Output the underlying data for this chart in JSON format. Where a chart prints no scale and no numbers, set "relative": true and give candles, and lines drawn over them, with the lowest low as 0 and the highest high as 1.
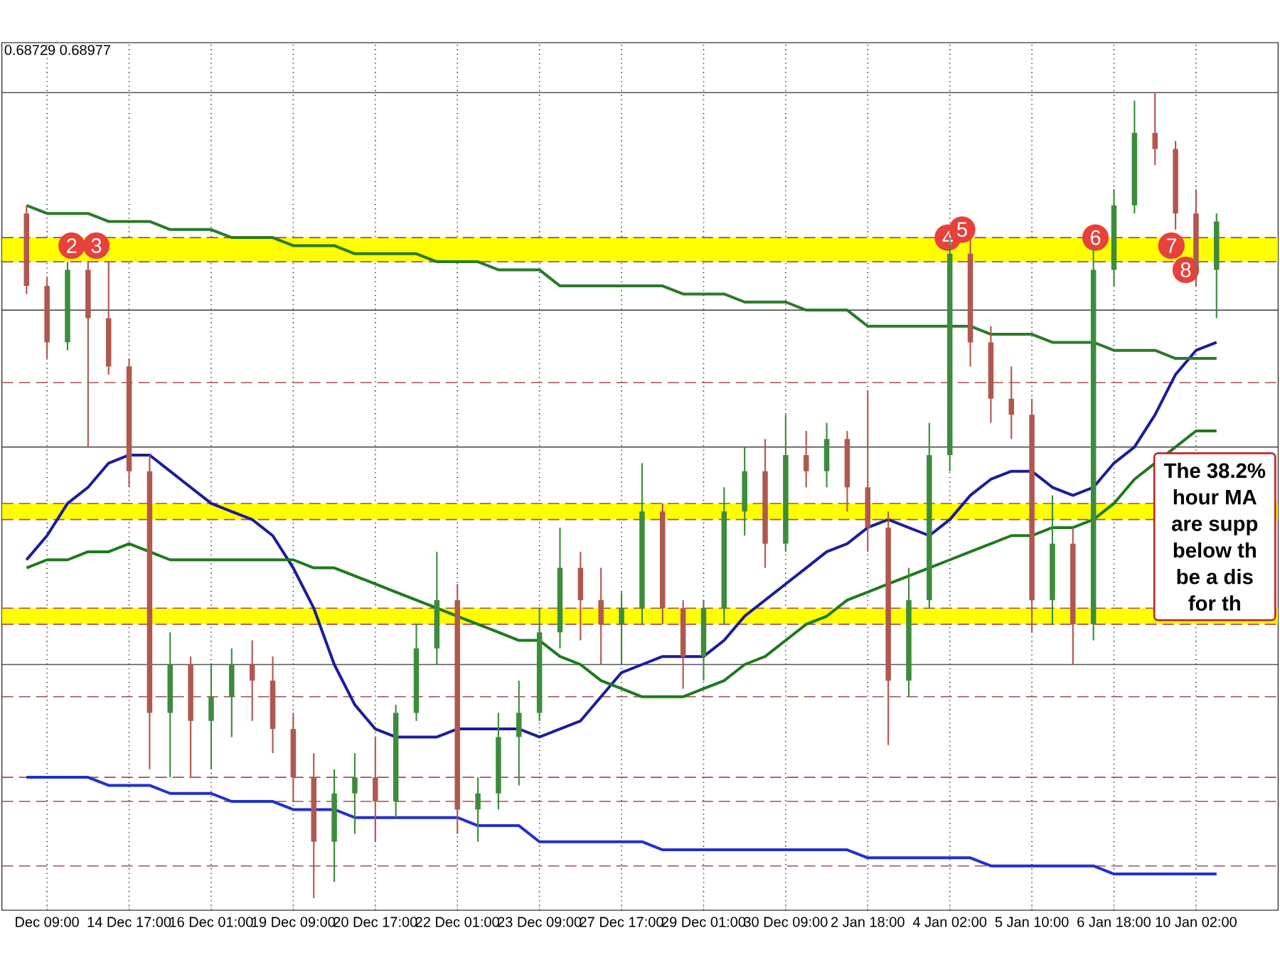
{
  "chart_data": {
    "type": "candlestick",
    "relative": true,
    "categories": [
      null,
      "Dec 09:00",
      null,
      null,
      null,
      "14 Dec 17:00",
      null,
      null,
      null,
      "16 Dec 01:00",
      null,
      null,
      null,
      "19 Dec 09:00",
      null,
      null,
      null,
      "20 Dec 17:00",
      null,
      null,
      null,
      "22 Dec 01:00",
      null,
      null,
      null,
      "23 Dec 09:00",
      null,
      null,
      null,
      "27 Dec 17:00",
      null,
      null,
      null,
      "29 Dec 01:00",
      null,
      null,
      null,
      "30 Dec 09:00",
      null,
      null,
      null,
      "2 Jan 18:00",
      null,
      null,
      null,
      "4 Jan 02:00",
      null,
      null,
      null,
      "5 Jan 10:00",
      null,
      null,
      null,
      "6 Jan 18:00",
      null,
      null,
      null,
      "10 Jan 02:00",
      null
    ],
    "ohlc": [
      [
        0.85,
        0.86,
        0.75,
        0.76
      ],
      [
        0.76,
        0.77,
        0.67,
        0.69
      ],
      [
        0.69,
        0.79,
        0.68,
        0.78
      ],
      [
        0.78,
        0.79,
        0.56,
        0.72
      ],
      [
        0.72,
        0.79,
        0.65,
        0.66
      ],
      [
        0.66,
        0.67,
        0.51,
        0.53
      ],
      [
        0.53,
        0.55,
        0.16,
        0.23
      ],
      [
        0.23,
        0.33,
        0.15,
        0.29
      ],
      [
        0.29,
        0.3,
        0.15,
        0.22
      ],
      [
        0.22,
        0.29,
        0.16,
        0.25
      ],
      [
        0.25,
        0.31,
        0.2,
        0.29
      ],
      [
        0.29,
        0.32,
        0.22,
        0.27
      ],
      [
        0.27,
        0.3,
        0.18,
        0.21
      ],
      [
        0.21,
        0.23,
        0.12,
        0.15
      ],
      [
        0.15,
        0.18,
        0,
        0.07
      ],
      [
        0.07,
        0.16,
        0.02,
        0.13
      ],
      [
        0.13,
        0.18,
        0.08,
        0.15
      ],
      [
        0.15,
        0.2,
        0.07,
        0.12
      ],
      [
        0.12,
        0.24,
        0.1,
        0.23
      ],
      [
        0.23,
        0.34,
        0.22,
        0.31
      ],
      [
        0.31,
        0.43,
        0.29,
        0.37
      ],
      [
        0.37,
        0.39,
        0.08,
        0.11
      ],
      [
        0.11,
        0.15,
        0.07,
        0.13
      ],
      [
        0.13,
        0.23,
        0.11,
        0.2
      ],
      [
        0.2,
        0.27,
        0.14,
        0.23
      ],
      [
        0.23,
        0.36,
        0.22,
        0.33
      ],
      [
        0.33,
        0.46,
        0.31,
        0.41
      ],
      [
        0.41,
        0.43,
        0.32,
        0.37
      ],
      [
        0.37,
        0.41,
        0.29,
        0.34
      ],
      [
        0.34,
        0.38,
        0.29,
        0.36
      ],
      [
        0.36,
        0.54,
        0.34,
        0.48
      ],
      [
        0.48,
        0.49,
        0.34,
        0.36
      ],
      [
        0.36,
        0.37,
        0.26,
        0.3
      ],
      [
        0.3,
        0.37,
        0.27,
        0.36
      ],
      [
        0.36,
        0.51,
        0.34,
        0.48
      ],
      [
        0.48,
        0.56,
        0.45,
        0.53
      ],
      [
        0.53,
        0.57,
        0.41,
        0.44
      ],
      [
        0.44,
        0.6,
        0.43,
        0.55
      ],
      [
        0.55,
        0.58,
        0.51,
        0.53
      ],
      [
        0.53,
        0.59,
        0.51,
        0.57
      ],
      [
        0.57,
        0.58,
        0.48,
        0.51
      ],
      [
        0.51,
        0.63,
        0.43,
        0.46
      ],
      [
        0.46,
        0.48,
        0.19,
        0.27
      ],
      [
        0.27,
        0.41,
        0.25,
        0.37
      ],
      [
        0.37,
        0.59,
        0.36,
        0.55
      ],
      [
        0.55,
        0.82,
        0.53,
        0.8
      ],
      [
        0.8,
        0.82,
        0.66,
        0.69
      ],
      [
        0.69,
        0.71,
        0.59,
        0.62
      ],
      [
        0.62,
        0.66,
        0.57,
        0.6
      ],
      [
        0.6,
        0.62,
        0.33,
        0.37
      ],
      [
        0.37,
        0.5,
        0.34,
        0.44
      ],
      [
        0.44,
        0.46,
        0.29,
        0.34
      ],
      [
        0.34,
        0.81,
        0.32,
        0.78
      ],
      [
        0.78,
        0.88,
        0.76,
        0.86
      ],
      [
        0.86,
        0.99,
        0.85,
        0.95
      ],
      [
        0.95,
        1,
        0.91,
        0.93
      ],
      [
        0.93,
        0.94,
        0.83,
        0.85
      ],
      [
        0.85,
        0.88,
        0.76,
        0.78
      ],
      [
        0.78,
        0.85,
        0.72,
        0.84
      ]
    ],
    "series": [
      {
        "type": "line",
        "color": "#1c1c9c",
        "values": [
          0.42,
          0.45,
          0.49,
          0.51,
          0.54,
          0.55,
          0.55,
          0.53,
          0.51,
          0.49,
          0.48,
          0.47,
          0.45,
          0.41,
          0.36,
          0.29,
          0.24,
          0.21,
          0.2,
          0.2,
          0.2,
          0.21,
          0.21,
          0.21,
          0.21,
          0.2,
          0.21,
          0.22,
          0.25,
          0.28,
          0.29,
          0.3,
          0.3,
          0.3,
          0.32,
          0.35,
          0.37,
          0.39,
          0.41,
          0.43,
          0.44,
          0.46,
          0.47,
          0.46,
          0.45,
          0.47,
          0.5,
          0.52,
          0.53,
          0.53,
          0.51,
          0.5,
          0.51,
          0.54,
          0.56,
          0.6,
          0.65,
          0.68,
          0.69
        ]
      },
      {
        "type": "line",
        "color": "#1e7a1e",
        "values": [
          0.41,
          0.42,
          0.42,
          0.43,
          0.43,
          0.44,
          0.43,
          0.42,
          0.42,
          0.42,
          0.42,
          0.42,
          0.42,
          0.42,
          0.41,
          0.41,
          0.4,
          0.39,
          0.38,
          0.37,
          0.36,
          0.35,
          0.34,
          0.33,
          0.32,
          0.32,
          0.3,
          0.29,
          0.27,
          0.26,
          0.25,
          0.25,
          0.25,
          0.26,
          0.27,
          0.29,
          0.3,
          0.32,
          0.34,
          0.35,
          0.37,
          0.38,
          0.39,
          0.4,
          0.41,
          0.42,
          0.43,
          0.44,
          0.45,
          0.45,
          0.46,
          0.46,
          0.47,
          0.49,
          0.52,
          0.54,
          0.56,
          0.58,
          0.58
        ]
      },
      {
        "type": "line",
        "color": "#2a7a2a",
        "values": [
          0.86,
          0.85,
          0.85,
          0.85,
          0.84,
          0.84,
          0.84,
          0.83,
          0.83,
          0.83,
          0.82,
          0.82,
          0.82,
          0.81,
          0.81,
          0.81,
          0.8,
          0.8,
          0.8,
          0.8,
          0.79,
          0.79,
          0.79,
          0.78,
          0.78,
          0.78,
          0.76,
          0.76,
          0.76,
          0.76,
          0.76,
          0.76,
          0.75,
          0.75,
          0.75,
          0.74,
          0.74,
          0.74,
          0.73,
          0.73,
          0.73,
          0.71,
          0.71,
          0.71,
          0.71,
          0.71,
          0.71,
          0.7,
          0.7,
          0.7,
          0.69,
          0.69,
          0.69,
          0.68,
          0.68,
          0.68,
          0.67,
          0.67,
          0.67
        ]
      },
      {
        "type": "line",
        "color": "#2030d0",
        "values": [
          0.15,
          0.15,
          0.15,
          0.15,
          0.14,
          0.14,
          0.14,
          0.13,
          0.13,
          0.13,
          0.12,
          0.12,
          0.12,
          0.11,
          0.11,
          0.11,
          0.1,
          0.1,
          0.1,
          0.1,
          0.1,
          0.1,
          0.09,
          0.09,
          0.09,
          0.07,
          0.07,
          0.07,
          0.07,
          0.07,
          0.07,
          0.06,
          0.06,
          0.06,
          0.06,
          0.06,
          0.06,
          0.06,
          0.06,
          0.06,
          0.06,
          0.05,
          0.05,
          0.05,
          0.05,
          0.05,
          0.05,
          0.04,
          0.04,
          0.04,
          0.04,
          0.04,
          0.04,
          0.03,
          0.03,
          0.03,
          0.03,
          0.03,
          0.03
        ]
      }
    ],
    "grid": "x",
    "bands": [
      {
        "axis": "y",
        "from": 0.79,
        "to": 0.82,
        "color": "#ffff00"
      },
      {
        "axis": "y",
        "from": 0.47,
        "to": 0.49,
        "color": "#ffff00"
      },
      {
        "axis": "y",
        "from": 0.34,
        "to": 0.36,
        "color": "#ffff00"
      }
    ],
    "ref_lines": [
      {
        "axis": "y",
        "value": 0.82,
        "color": "#a0524f",
        "line_style": "dashed"
      },
      {
        "axis": "y",
        "value": 0.79,
        "color": "#a0524f",
        "line_style": "dashed"
      },
      {
        "axis": "y",
        "value": 0.49,
        "color": "#a0524f",
        "line_style": "dashed"
      },
      {
        "axis": "y",
        "value": 0.47,
        "color": "#a0524f",
        "line_style": "dashed"
      },
      {
        "axis": "y",
        "value": 0.36,
        "color": "#a0524f",
        "line_style": "dashed"
      },
      {
        "axis": "y",
        "value": 0.34,
        "color": "#a0524f",
        "line_style": "dashed"
      },
      {
        "axis": "y",
        "value": 0.64,
        "color": "#a0524f",
        "line_style": "dashed"
      },
      {
        "axis": "y",
        "value": 0.25,
        "color": "#a0524f",
        "line_style": "dashed"
      },
      {
        "axis": "y",
        "value": 0.15,
        "color": "#a0524f",
        "line_style": "dashed"
      },
      {
        "axis": "y",
        "value": 0.12,
        "color": "#a0524f",
        "line_style": "dashed"
      },
      {
        "axis": "y",
        "value": 0.04,
        "color": "#a0524f",
        "line_style": "dashed"
      },
      {
        "axis": "y",
        "value": 1,
        "color": "#555555",
        "line_style": "solid"
      },
      {
        "axis": "y",
        "value": 0.73,
        "color": "#555555",
        "line_style": "solid"
      },
      {
        "axis": "y",
        "value": 0.56,
        "color": "#555555",
        "line_style": "solid"
      },
      {
        "axis": "y",
        "value": 0.29,
        "color": "#555555",
        "line_style": "solid"
      }
    ],
    "annotations": [
      "0.68729 0.68977",
      {
        "text": "2",
        "y": 0.81
      },
      {
        "text": "3",
        "y": 0.81
      },
      {
        "text": "4",
        "y": 0.82
      },
      {
        "text": "5",
        "y": 0.83
      },
      {
        "text": "6",
        "y": 0.82
      },
      {
        "text": "7",
        "y": 0.81
      },
      {
        "text": "8",
        "y": 0.78
      },
      "The 38.2%",
      "hour MA",
      "are supp",
      "below th",
      "be a dis",
      "for th"
    ]
  }
}
